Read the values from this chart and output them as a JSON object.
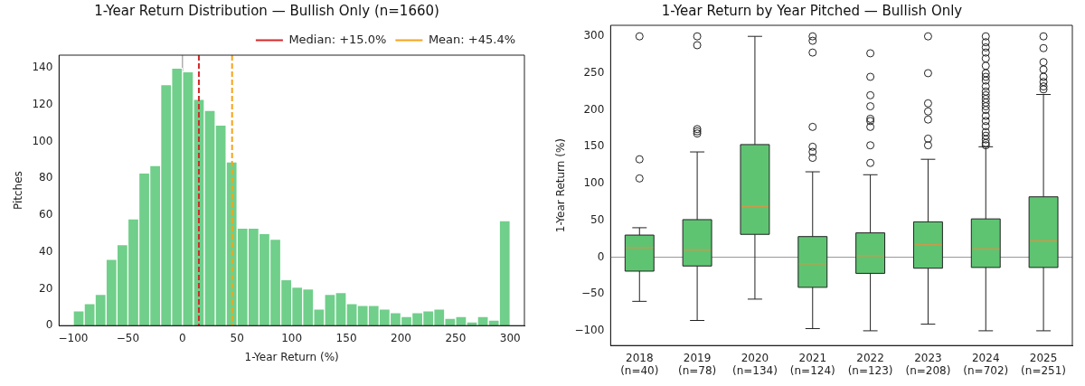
{
  "chart_data": [
    {
      "type": "histogram",
      "title": "1-Year Return Distribution — Bullish Only (n=1660)",
      "xlabel": "1-Year Return (%)",
      "ylabel": "Pitches",
      "color": "#70cf8a",
      "bins": [
        -100,
        -90,
        -80,
        -70,
        -60,
        -50,
        -40,
        -30,
        -20,
        -10,
        0,
        10,
        20,
        30,
        40,
        50,
        60,
        70,
        80,
        90,
        100,
        110,
        120,
        130,
        140,
        150,
        160,
        170,
        180,
        190,
        200,
        210,
        220,
        230,
        240,
        250,
        260,
        270,
        280,
        290,
        300
      ],
      "values": [
        8,
        12,
        17,
        36,
        44,
        58,
        83,
        87,
        131,
        140,
        138,
        123,
        117,
        109,
        89,
        53,
        53,
        50,
        47,
        25,
        21,
        20,
        9,
        17,
        18,
        12,
        11,
        11,
        9,
        7,
        5,
        7,
        8,
        9,
        4,
        5,
        2,
        5,
        3,
        57
      ],
      "xlim": [
        -113,
        313
      ],
      "ylim": [
        0,
        147
      ],
      "xticks": [
        -100,
        -50,
        0,
        50,
        100,
        150,
        200,
        250,
        300
      ],
      "yticks": [
        0,
        20,
        40,
        60,
        80,
        100,
        120,
        140
      ],
      "ref_lines": [
        {
          "axis": "x",
          "value": 0,
          "color": "#888888",
          "line_style": "solid"
        },
        {
          "axis": "x",
          "value": 15.0,
          "label": "Median: +15.0%",
          "color": "#d62728",
          "line_style": "dashed"
        },
        {
          "axis": "x",
          "value": 45.4,
          "label": "Mean: +45.4%",
          "color": "#f5a31a",
          "line_style": "dashed"
        }
      ],
      "legend": "top right"
    },
    {
      "type": "box",
      "title": "1-Year Return by Year Pitched — Bullish Only",
      "ylabel": "1-Year Return (%)",
      "color": "#5ec472",
      "categories": [
        "2018\n(n=40)",
        "2019\n(n=78)",
        "2020\n(n=134)",
        "2021\n(n=124)",
        "2022\n(n=123)",
        "2023\n(n=208)",
        "2024\n(n=702)",
        "2025\n(n=251)"
      ],
      "boxes": [
        {
          "low": -60,
          "q1": -19,
          "median": 13,
          "q3": 30,
          "high": 40,
          "outliers": [
            107,
            133,
            300
          ]
        },
        {
          "low": -86,
          "q1": -12,
          "median": 10,
          "q3": 51,
          "high": 143,
          "outliers": [
            168,
            171,
            174,
            288,
            300
          ]
        },
        {
          "low": -57,
          "q1": 31,
          "median": 69,
          "q3": 153,
          "high": 300
        },
        {
          "low": -97,
          "q1": -41,
          "median": -9,
          "q3": 28,
          "high": 116,
          "outliers": [
            135,
            143,
            150,
            177,
            278,
            294,
            300
          ]
        },
        {
          "low": -100,
          "q1": -22,
          "median": 2,
          "q3": 33,
          "high": 112,
          "outliers": [
            128,
            152,
            177,
            185,
            188,
            205,
            220,
            245,
            277
          ]
        },
        {
          "low": -91,
          "q1": -15,
          "median": 17,
          "q3": 48,
          "high": 133,
          "outliers": [
            152,
            161,
            187,
            198,
            209,
            250,
            300
          ]
        },
        {
          "low": -100,
          "q1": -14,
          "median": 11,
          "q3": 52,
          "high": 150,
          "outliers": [
            152,
            155,
            160,
            165,
            170,
            178,
            185,
            192,
            200,
            205,
            210,
            215,
            220,
            225,
            232,
            240,
            245,
            250,
            260,
            270,
            278,
            285,
            292,
            300
          ]
        },
        {
          "low": -100,
          "q1": -14,
          "median": 22,
          "q3": 82,
          "high": 221,
          "outliers": [
            228,
            232,
            238,
            245,
            255,
            265,
            284,
            300
          ]
        }
      ],
      "ylim": [
        -120,
        315
      ],
      "yticks": [
        -100,
        -50,
        0,
        50,
        100,
        150,
        200,
        250,
        300
      ],
      "ref_lines": [
        {
          "axis": "y",
          "value": 0,
          "color": "#999999",
          "line_style": "solid"
        }
      ],
      "legend": false
    }
  ]
}
